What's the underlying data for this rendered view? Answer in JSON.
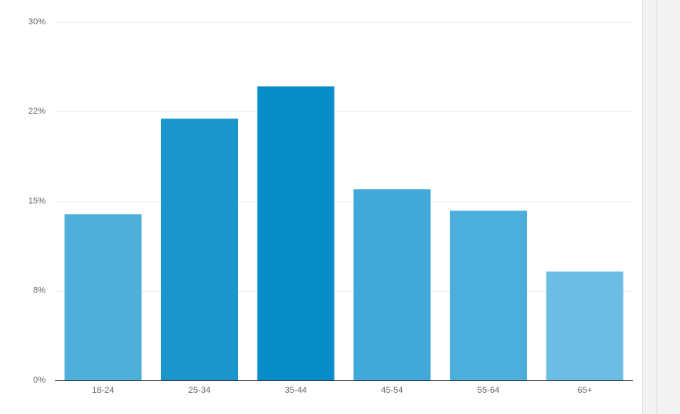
{
  "chart_data": {
    "type": "bar",
    "categories": [
      "18-24",
      "25-34",
      "35-44",
      "45-54",
      "55-64",
      "65+"
    ],
    "values": [
      13.9,
      21.9,
      24.6,
      16.0,
      14.2,
      9.1
    ],
    "colors": [
      "#4eb0da",
      "#1a96cd",
      "#078dc8",
      "#40a9d8",
      "#4caedb",
      "#6bbde3"
    ],
    "ylim": [
      0,
      30
    ],
    "yticks": [
      {
        "value": 0,
        "label": "0%"
      },
      {
        "value": 7.5,
        "label": "8%"
      },
      {
        "value": 15,
        "label": "15%"
      },
      {
        "value": 22.5,
        "label": "22%"
      },
      {
        "value": 30,
        "label": "30%"
      }
    ],
    "grid": true
  }
}
